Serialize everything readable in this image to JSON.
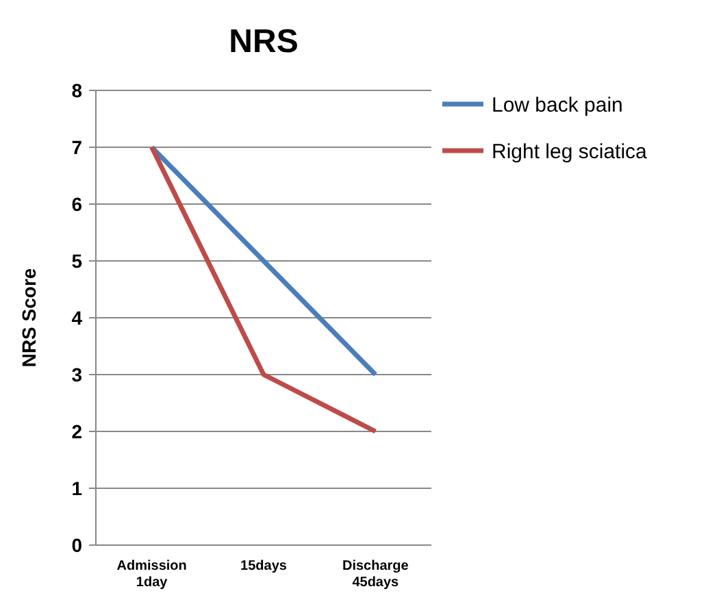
{
  "chart_data": {
    "type": "line",
    "title": "NRS",
    "ylabel": "NRS Score",
    "categories": [
      "Admission\n1day",
      "15days",
      "Discharge\n45days"
    ],
    "series": [
      {
        "name": "Low back pain",
        "color": "#4a7ebb",
        "values": [
          7,
          5,
          3
        ]
      },
      {
        "name": "Right leg sciatica",
        "color": "#be4b48",
        "values": [
          7,
          3,
          2
        ]
      }
    ],
    "ylim": [
      0,
      8
    ],
    "yticks": [
      0,
      1,
      2,
      3,
      4,
      5,
      6,
      7,
      8
    ],
    "grid": "y",
    "legend": "top right",
    "marker": "none"
  }
}
